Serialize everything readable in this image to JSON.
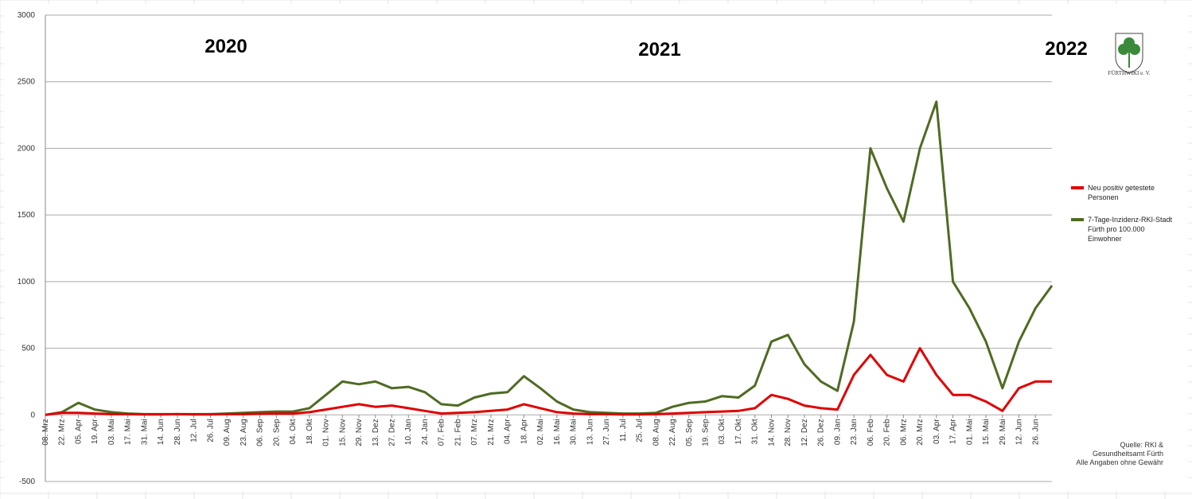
{
  "chart_data": {
    "type": "line",
    "categories": [
      "08. Mrz",
      "22. Mrz",
      "05. Apr",
      "19. Apr",
      "03. Mai",
      "17. Mai",
      "31. Mai",
      "14. Jun",
      "28. Jun",
      "12. Jul",
      "26. Jul",
      "09. Aug",
      "23. Aug",
      "06. Sep",
      "20. Sep",
      "04. Okt",
      "18. Okt",
      "01. Nov",
      "15. Nov",
      "29. Nov",
      "13. Dez",
      "27. Dez",
      "10. Jan",
      "24. Jan",
      "07. Feb",
      "21. Feb",
      "07. Mrz",
      "21. Mrz",
      "04. Apr",
      "18. Apr",
      "02. Mai",
      "16. Mai",
      "30. Mai",
      "13. Jun",
      "27. Jun",
      "11. Jul",
      "25. Jul",
      "08. Aug",
      "22. Aug",
      "05. Sep",
      "19. Sep",
      "03. Okt",
      "17. Okt",
      "31. Okt",
      "14. Nov",
      "28. Nov",
      "12. Dez",
      "26. Dez",
      "09. Jan",
      "23. Jan",
      "06. Feb",
      "20. Feb",
      "06. Mrz",
      "20. Mrz",
      "03. Apr",
      "17. Apr",
      "01. Mai",
      "15. Mai",
      "29. Mai",
      "12. Jun",
      "26. Jun",
      null
    ],
    "series": [
      {
        "name": "Neu positiv getestete Personen",
        "color": "#e00000",
        "values": [
          0,
          15,
          15,
          10,
          5,
          5,
          3,
          3,
          5,
          3,
          3,
          5,
          5,
          8,
          10,
          10,
          20,
          40,
          60,
          80,
          60,
          70,
          50,
          30,
          10,
          15,
          20,
          30,
          40,
          80,
          50,
          20,
          10,
          5,
          5,
          3,
          3,
          5,
          10,
          15,
          20,
          25,
          30,
          50,
          150,
          120,
          70,
          50,
          40,
          300,
          450,
          300,
          250,
          500,
          300,
          150,
          150,
          100,
          30,
          200,
          250,
          250
        ]
      },
      {
        "name": "7-Tage-Inzidenz-RKI-Stadt Fürth pro 100.000 Einwohner",
        "color": "#4f6b23",
        "values": [
          0,
          20,
          90,
          40,
          20,
          10,
          5,
          5,
          5,
          5,
          5,
          10,
          15,
          20,
          25,
          25,
          50,
          150,
          250,
          230,
          250,
          200,
          210,
          170,
          80,
          70,
          130,
          160,
          170,
          290,
          200,
          100,
          40,
          20,
          15,
          10,
          10,
          15,
          60,
          90,
          100,
          140,
          130,
          220,
          550,
          600,
          380,
          250,
          180,
          700,
          2000,
          1700,
          1450,
          2000,
          2350,
          1000,
          800,
          550,
          200,
          550,
          800,
          970
        ]
      }
    ],
    "ylim": [
      -500,
      3000
    ],
    "yticks": [
      -500,
      0,
      500,
      1000,
      1500,
      2000,
      2500,
      3000
    ],
    "grid": true,
    "year_labels": [
      "2020",
      "2021",
      "2022"
    ],
    "logo_text": "FÜRTHWIKI e. V.",
    "source": [
      "Quelle: RKI &",
      "Gesundheitsamt Fürth",
      "Alle Angaben ohne Gewähr"
    ]
  }
}
